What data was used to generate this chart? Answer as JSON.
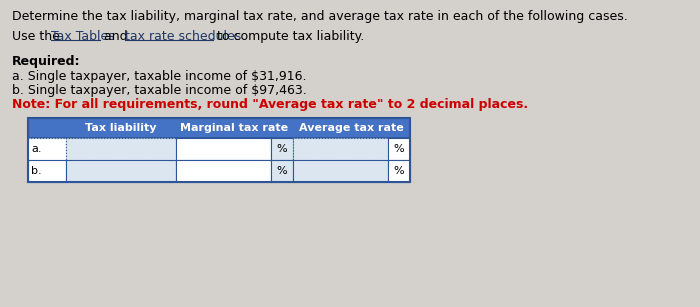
{
  "title_line1": "Determine the tax liability, marginal tax rate, and average tax rate in each of the following cases.",
  "line2_parts": [
    {
      "text": "Use the ",
      "underline": false,
      "color": "#000000"
    },
    {
      "text": "Tax Tables",
      "underline": true,
      "color": "#1f3864"
    },
    {
      "text": " and ",
      "underline": false,
      "color": "#000000"
    },
    {
      "text": "tax rate schedules",
      "underline": true,
      "color": "#1f3864"
    },
    {
      "text": " to compute tax liability.",
      "underline": false,
      "color": "#000000"
    }
  ],
  "required_label": "Required:",
  "req_a": "a. Single taxpayer, taxable income of $31,916.",
  "req_b": "b. Single taxpayer, taxable income of $97,463.",
  "note": "Note: For all requirements, round \"Average tax rate\" to 2 decimal places.",
  "col_headers": [
    "Tax liability",
    "Marginal tax rate",
    "Average tax rate"
  ],
  "row_labels": [
    "a.",
    "b."
  ],
  "percent_symbol": "%",
  "bg_color": "#d4d0cb",
  "header_bg": "#4472c4",
  "header_text": "#ffffff",
  "cell_bg_light": "#dce6f1",
  "cell_bg_white": "#ffffff",
  "border_color": "#2e5597",
  "note_color": "#cc0000",
  "body_text_color": "#000000",
  "font_size_body": 9.0,
  "font_size_table": 8.0
}
